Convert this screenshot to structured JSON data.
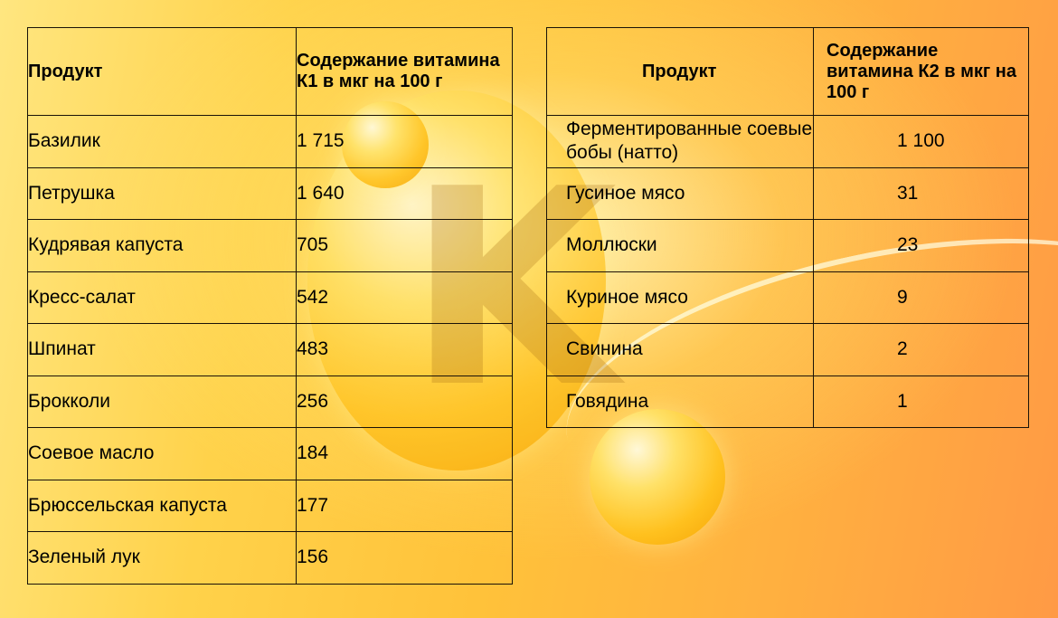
{
  "table_k1": {
    "header_product": "Продукт",
    "header_value": "Содержание витамина К1 в мкг на 100 г",
    "rows": [
      {
        "product": "Базилик",
        "value": "1 715"
      },
      {
        "product": "Петрушка",
        "value": "1 640"
      },
      {
        "product": "Кудрявая капуста",
        "value": "705"
      },
      {
        "product": "Кресс-салат",
        "value": "542"
      },
      {
        "product": "Шпинат",
        "value": "483"
      },
      {
        "product": "Брокколи",
        "value": "256"
      },
      {
        "product": "Соевое масло",
        "value": "184"
      },
      {
        "product": "Брюссельская капуста",
        "value": "177"
      },
      {
        "product": "Зеленый лук",
        "value": "156"
      }
    ]
  },
  "table_k2": {
    "header_product": "Продукт",
    "header_value": "Содержание витамина К2 в мкг на 100 г",
    "rows": [
      {
        "product": "Ферментированные соевые бобы (натто)",
        "value": "1 100"
      },
      {
        "product": "Гусиное мясо",
        "value": "31"
      },
      {
        "product": "Моллюски",
        "value": "23"
      },
      {
        "product": "Куриное мясо",
        "value": "9"
      },
      {
        "product": "Свинина",
        "value": "2"
      },
      {
        "product": "Говядина",
        "value": "1"
      }
    ]
  },
  "background": {
    "letter": "K",
    "colors": {
      "light": "#ffe680",
      "mid": "#ffc23a",
      "dark": "#ff9a45"
    }
  }
}
